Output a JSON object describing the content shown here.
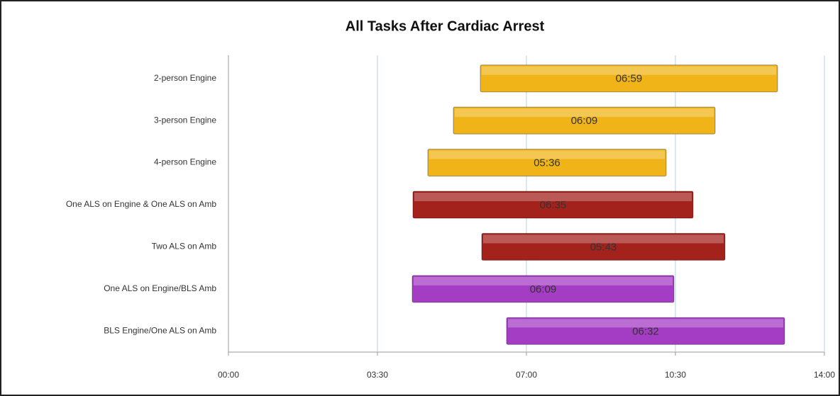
{
  "chart_data": {
    "type": "floating_bar",
    "title": "All Tasks After Cardiac Arrest",
    "categories": [
      "2-person Engine",
      "3-person Engine",
      "4-person Engine",
      "One ALS on Engine & One ALS on Amb",
      "Two ALS on Amb",
      "One ALS on Engine/BLS Amb",
      "BLS Engine/One ALS on Amb"
    ],
    "starts": [
      355,
      317,
      281,
      260,
      357,
      259,
      392
    ],
    "values": [
      419,
      369,
      336,
      395,
      343,
      369,
      392
    ],
    "value_labels": [
      "06:59",
      "06:09",
      "05:36",
      "06:35",
      "05:43",
      "06:09",
      "06:32"
    ],
    "colors": [
      "#f0b418",
      "#f0b418",
      "#f0b418",
      "#a3221c",
      "#a3221c",
      "#a43cc4",
      "#a43cc4"
    ],
    "xlim": [
      0,
      840
    ],
    "xticks": [
      {
        "value": 0,
        "label": "00:00"
      },
      {
        "value": 210,
        "label": "03:30"
      },
      {
        "value": 420,
        "label": "07:00"
      },
      {
        "value": 630,
        "label": "10:30"
      },
      {
        "value": 840,
        "label": "14:00"
      }
    ],
    "grid": true
  }
}
